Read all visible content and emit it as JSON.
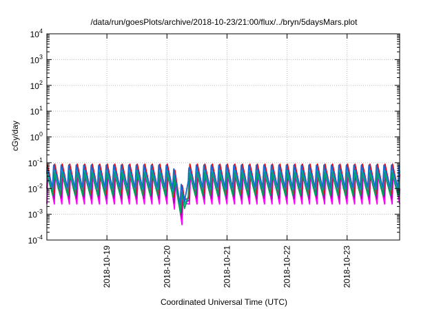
{
  "chart_data": {
    "type": "line",
    "title": "/data/run/goesPlots/archive/2018-10-23/21:00/flux/../bryn/5daysMars.plot",
    "xlabel": "Coordinated Universal Time (UTC)",
    "ylabel": "cGy/day",
    "yscale": "log",
    "ylim": [
      0.0001,
      10000
    ],
    "xlim": [
      "2018-10-18T00:00",
      "2018-10-23T21:00"
    ],
    "x_ticks": [
      "2018-10-19",
      "2018-10-20",
      "2018-10-21",
      "2018-10-22",
      "2018-10-23"
    ],
    "y_ticks": [
      {
        "base": "10",
        "exp": "-4"
      },
      {
        "base": "10",
        "exp": "-3"
      },
      {
        "base": "10",
        "exp": "-2"
      },
      {
        "base": "10",
        "exp": "-1"
      },
      {
        "base": "10",
        "exp": "0"
      },
      {
        "base": "10",
        "exp": "1"
      },
      {
        "base": "10",
        "exp": "2"
      },
      {
        "base": "10",
        "exp": "3"
      },
      {
        "base": "10",
        "exp": "4"
      }
    ],
    "grid": true,
    "pattern": {
      "sawtooth_period_hours": 3,
      "dip_start": "2018-10-20T02:00",
      "dip_min": "2018-10-20T07:00",
      "dip_end": "2018-10-20T09:00"
    },
    "series": [
      {
        "color": "#ff00ff",
        "peak": 0.05,
        "trough": 0.0025
      },
      {
        "color": "#b000b0",
        "peak": 0.06,
        "trough": 0.004
      },
      {
        "color": "#ff0000",
        "peak": 0.09,
        "trough": 0.006
      },
      {
        "color": "#00c0c0",
        "peak": 0.05,
        "trough": 0.008
      },
      {
        "color": "#00a060",
        "peak": 0.045,
        "trough": 0.005
      },
      {
        "color": "#1e66d0",
        "peak": 0.085,
        "trough": 0.011
      }
    ]
  }
}
